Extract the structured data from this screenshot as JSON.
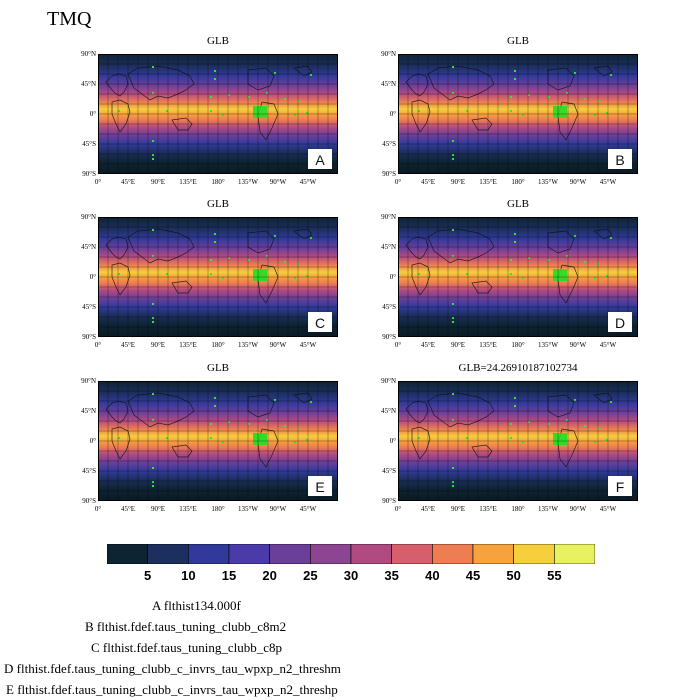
{
  "figure": {
    "title": "TMQ"
  },
  "panels": [
    {
      "id": "A",
      "title": "GLB"
    },
    {
      "id": "B",
      "title": "GLB"
    },
    {
      "id": "C",
      "title": "GLB"
    },
    {
      "id": "D",
      "title": "GLB"
    },
    {
      "id": "E",
      "title": "GLB"
    },
    {
      "id": "F",
      "title": "GLB=24.26910187102734"
    }
  ],
  "axes": {
    "lat_ticks": [
      "90°N",
      "45°N",
      "0°",
      "45°S",
      "90°S"
    ],
    "lon_ticks": [
      "0°",
      "45°E",
      "90°E",
      "135°E",
      "180°",
      "135°W",
      "90°W",
      "45°W"
    ]
  },
  "colorbar": {
    "labels": [
      "5",
      "10",
      "15",
      "20",
      "25",
      "30",
      "35",
      "40",
      "45",
      "50",
      "55"
    ],
    "colors": [
      "#0e2433",
      "#1c2f5e",
      "#313a9a",
      "#4a3ba8",
      "#6a3f9a",
      "#8c4590",
      "#b24a82",
      "#d75f6c",
      "#ee7d52",
      "#f7a33d",
      "#f5cf3c",
      "#e8f260"
    ]
  },
  "legend": [
    {
      "letter": "A",
      "text": "flthist134.000f"
    },
    {
      "letter": "B",
      "text": "flthist.fdef.taus_tuning_clubb_c8m2"
    },
    {
      "letter": "C",
      "text": "flthist.fdef.taus_tuning_clubb_c8p"
    },
    {
      "letter": "D",
      "text": "flthist.fdef.taus_tuning_clubb_c_invrs_tau_wpxp_n2_threshm"
    },
    {
      "letter": "E",
      "text": "flthist.fdef.taus_tuning_clubb_c_invrs_tau_wpxp_n2_threshp"
    }
  ]
}
